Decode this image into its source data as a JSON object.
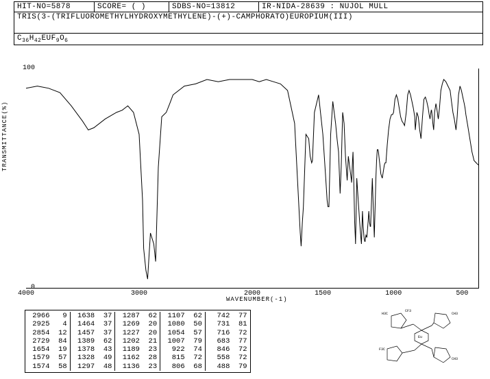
{
  "header": {
    "hit_no": "HIT-NO=5878",
    "score": "SCORE=  (  )",
    "sdbs": "SDBS-NO=13812",
    "ir": "IR-NIDA-28639 : NUJOL MULL",
    "name": "TRIS(3-(TRIFLUOROMETHYLHYDROXYMETHYLENE)-(+)-CAMPHORATO)EUROPIUM(III)",
    "formula_parts": [
      "C",
      "36",
      "H",
      "42",
      "EUF",
      "9",
      "O",
      "6"
    ]
  },
  "chart": {
    "type": "line",
    "ylabel": "TRANSMITTANCE(%)",
    "xlabel": "WAVENUMBER(-1)",
    "xlim": [
      4000,
      400
    ],
    "ylim": [
      0,
      100
    ],
    "xticks": [
      4000,
      3000,
      2000,
      1500,
      1000,
      500
    ],
    "yticks": [
      0,
      100
    ],
    "line_color": "#000000",
    "line_width": 1,
    "background_color": "#ffffff",
    "series": [
      [
        4000,
        91
      ],
      [
        3900,
        92
      ],
      [
        3800,
        91
      ],
      [
        3700,
        89
      ],
      [
        3600,
        83
      ],
      [
        3500,
        76
      ],
      [
        3450,
        72
      ],
      [
        3400,
        73
      ],
      [
        3300,
        77
      ],
      [
        3200,
        80
      ],
      [
        3150,
        81
      ],
      [
        3100,
        83
      ],
      [
        3050,
        80
      ],
      [
        3000,
        70
      ],
      [
        2970,
        40
      ],
      [
        2960,
        18
      ],
      [
        2940,
        8
      ],
      [
        2925,
        4
      ],
      [
        2900,
        25
      ],
      [
        2870,
        20
      ],
      [
        2854,
        12
      ],
      [
        2830,
        55
      ],
      [
        2800,
        78
      ],
      [
        2760,
        80
      ],
      [
        2729,
        84
      ],
      [
        2700,
        88
      ],
      [
        2600,
        92
      ],
      [
        2500,
        93
      ],
      [
        2400,
        95
      ],
      [
        2300,
        94
      ],
      [
        2200,
        95
      ],
      [
        2100,
        95
      ],
      [
        2000,
        95
      ],
      [
        1950,
        94
      ],
      [
        1900,
        95
      ],
      [
        1850,
        94
      ],
      [
        1800,
        93
      ],
      [
        1750,
        90
      ],
      [
        1700,
        75
      ],
      [
        1680,
        50
      ],
      [
        1660,
        25
      ],
      [
        1654,
        19
      ],
      [
        1645,
        30
      ],
      [
        1640,
        35
      ],
      [
        1638,
        37
      ],
      [
        1620,
        70
      ],
      [
        1600,
        68
      ],
      [
        1590,
        60
      ],
      [
        1579,
        57
      ],
      [
        1574,
        58
      ],
      [
        1560,
        80
      ],
      [
        1530,
        88
      ],
      [
        1500,
        70
      ],
      [
        1480,
        50
      ],
      [
        1470,
        40
      ],
      [
        1464,
        37
      ],
      [
        1457,
        37
      ],
      [
        1445,
        70
      ],
      [
        1430,
        85
      ],
      [
        1410,
        75
      ],
      [
        1400,
        68
      ],
      [
        1389,
        62
      ],
      [
        1378,
        43
      ],
      [
        1370,
        55
      ],
      [
        1360,
        80
      ],
      [
        1350,
        75
      ],
      [
        1340,
        60
      ],
      [
        1328,
        49
      ],
      [
        1320,
        60
      ],
      [
        1310,
        55
      ],
      [
        1300,
        50
      ],
      [
        1297,
        48
      ],
      [
        1290,
        58
      ],
      [
        1287,
        62
      ],
      [
        1280,
        45
      ],
      [
        1275,
        30
      ],
      [
        1270,
        22
      ],
      [
        1269,
        20
      ],
      [
        1260,
        50
      ],
      [
        1250,
        40
      ],
      [
        1240,
        30
      ],
      [
        1230,
        22
      ],
      [
        1227,
        20
      ],
      [
        1220,
        35
      ],
      [
        1215,
        28
      ],
      [
        1210,
        24
      ],
      [
        1207,
        22
      ],
      [
        1202,
        21
      ],
      [
        1195,
        24
      ],
      [
        1189,
        23
      ],
      [
        1180,
        30
      ],
      [
        1175,
        35
      ],
      [
        1170,
        30
      ],
      [
        1165,
        28
      ],
      [
        1162,
        28
      ],
      [
        1150,
        50
      ],
      [
        1140,
        30
      ],
      [
        1136,
        23
      ],
      [
        1125,
        50
      ],
      [
        1120,
        58
      ],
      [
        1115,
        63
      ],
      [
        1110,
        63
      ],
      [
        1107,
        62
      ],
      [
        1095,
        55
      ],
      [
        1090,
        52
      ],
      [
        1085,
        51
      ],
      [
        1080,
        50
      ],
      [
        1070,
        54
      ],
      [
        1065,
        56
      ],
      [
        1060,
        57
      ],
      [
        1054,
        57
      ],
      [
        1045,
        65
      ],
      [
        1035,
        72
      ],
      [
        1025,
        77
      ],
      [
        1015,
        79
      ],
      [
        1007,
        79
      ],
      [
        1000,
        80
      ],
      [
        990,
        86
      ],
      [
        980,
        88
      ],
      [
        970,
        86
      ],
      [
        960,
        82
      ],
      [
        950,
        78
      ],
      [
        940,
        76
      ],
      [
        930,
        75
      ],
      [
        922,
        74
      ],
      [
        910,
        80
      ],
      [
        900,
        88
      ],
      [
        890,
        90
      ],
      [
        880,
        88
      ],
      [
        870,
        85
      ],
      [
        860,
        82
      ],
      [
        850,
        78
      ],
      [
        846,
        72
      ],
      [
        835,
        80
      ],
      [
        825,
        78
      ],
      [
        820,
        75
      ],
      [
        815,
        72
      ],
      [
        810,
        70
      ],
      [
        806,
        68
      ],
      [
        795,
        78
      ],
      [
        785,
        86
      ],
      [
        775,
        87
      ],
      [
        765,
        85
      ],
      [
        755,
        82
      ],
      [
        748,
        79
      ],
      [
        742,
        77
      ],
      [
        738,
        79
      ],
      [
        733,
        81
      ],
      [
        731,
        81
      ],
      [
        726,
        78
      ],
      [
        722,
        75
      ],
      [
        718,
        73
      ],
      [
        716,
        72
      ],
      [
        710,
        80
      ],
      [
        700,
        84
      ],
      [
        695,
        82
      ],
      [
        690,
        80
      ],
      [
        686,
        78
      ],
      [
        683,
        77
      ],
      [
        675,
        82
      ],
      [
        665,
        90
      ],
      [
        655,
        93
      ],
      [
        645,
        95
      ],
      [
        630,
        94
      ],
      [
        615,
        92
      ],
      [
        600,
        90
      ],
      [
        590,
        85
      ],
      [
        580,
        80
      ],
      [
        570,
        77
      ],
      [
        563,
        74
      ],
      [
        558,
        72
      ],
      [
        550,
        78
      ],
      [
        540,
        88
      ],
      [
        530,
        92
      ],
      [
        520,
        90
      ],
      [
        510,
        87
      ],
      [
        500,
        84
      ],
      [
        494,
        82
      ],
      [
        488,
        79
      ],
      [
        475,
        74
      ],
      [
        460,
        68
      ],
      [
        445,
        62
      ],
      [
        430,
        58
      ],
      [
        415,
        57
      ],
      [
        400,
        56
      ]
    ]
  },
  "peaks": {
    "cols": [
      [
        [
          2966,
          9
        ],
        [
          2925,
          4
        ],
        [
          2854,
          12
        ],
        [
          2729,
          84
        ],
        [
          1654,
          19
        ],
        [
          1579,
          57
        ],
        [
          1574,
          58
        ]
      ],
      [
        [
          1638,
          37
        ],
        [
          1464,
          37
        ],
        [
          1457,
          37
        ],
        [
          1389,
          62
        ],
        [
          1378,
          43
        ],
        [
          1328,
          49
        ],
        [
          1297,
          48
        ]
      ],
      [
        [
          1287,
          62
        ],
        [
          1269,
          20
        ],
        [
          1227,
          20
        ],
        [
          1202,
          21
        ],
        [
          1189,
          23
        ],
        [
          1162,
          28
        ],
        [
          1136,
          23
        ]
      ],
      [
        [
          1107,
          62
        ],
        [
          1080,
          50
        ],
        [
          1054,
          57
        ],
        [
          1007,
          79
        ],
        [
          922,
          74
        ],
        [
          815,
          72
        ],
        [
          806,
          68
        ]
      ],
      [
        [
          742,
          77
        ],
        [
          731,
          81
        ],
        [
          716,
          72
        ],
        [
          683,
          77
        ],
        [
          846,
          72
        ],
        [
          558,
          72
        ],
        [
          488,
          79
        ]
      ]
    ]
  },
  "molecule_svg_color": "#000000"
}
